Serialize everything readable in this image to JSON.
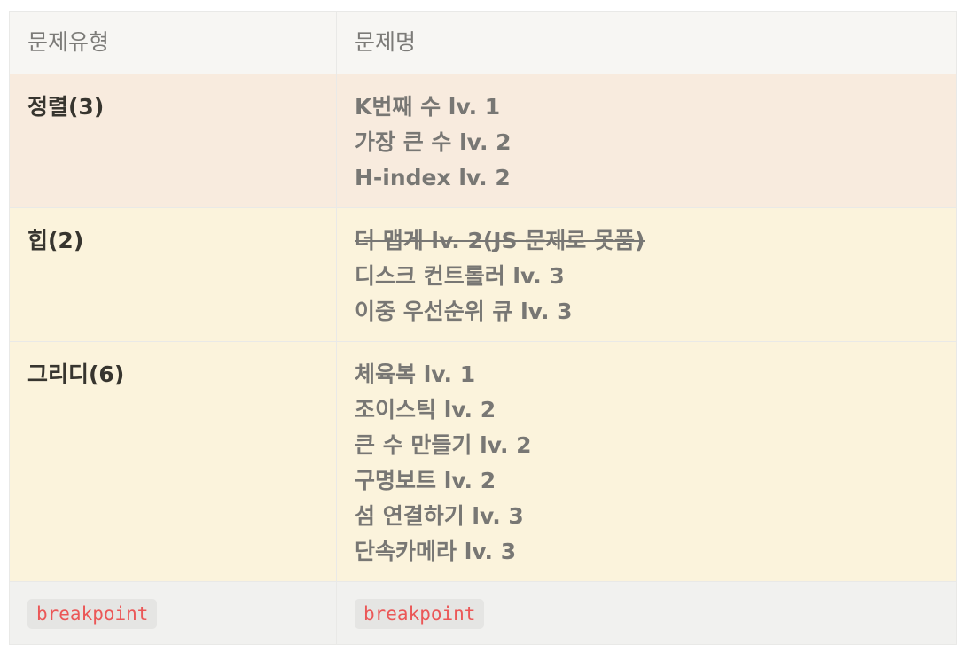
{
  "header": {
    "col1": "문제유형",
    "col2": "문제명"
  },
  "rows": [
    {
      "category": "정렬(3)",
      "problems": [
        {
          "text": "K번째 수 lv. 1",
          "strike": false
        },
        {
          "text": "가장 큰 수 lv. 2",
          "strike": false
        },
        {
          "text": "H-index lv. 2",
          "strike": false
        }
      ]
    },
    {
      "category": "힙(2)",
      "problems": [
        {
          "text": "더 맵게 lv. 2(JS 문제로 못품)",
          "strike": true
        },
        {
          "text": "디스크 컨트롤러 lv. 3",
          "strike": false
        },
        {
          "text": "이중 우선순위 큐 lv. 3",
          "strike": false
        }
      ]
    },
    {
      "category": "그리디(6)",
      "problems": [
        {
          "text": "체육복 lv. 1",
          "strike": false
        },
        {
          "text": "조이스틱 lv. 2",
          "strike": false
        },
        {
          "text": "큰 수 만들기 lv. 2",
          "strike": false
        },
        {
          "text": "구명보트 lv. 2",
          "strike": false
        },
        {
          "text": "섬 연결하기 lv. 3",
          "strike": false
        },
        {
          "text": "단속카메라 lv. 3",
          "strike": false
        }
      ]
    }
  ],
  "footer": {
    "col1_code": "breakpoint",
    "col2_code": "breakpoint"
  }
}
